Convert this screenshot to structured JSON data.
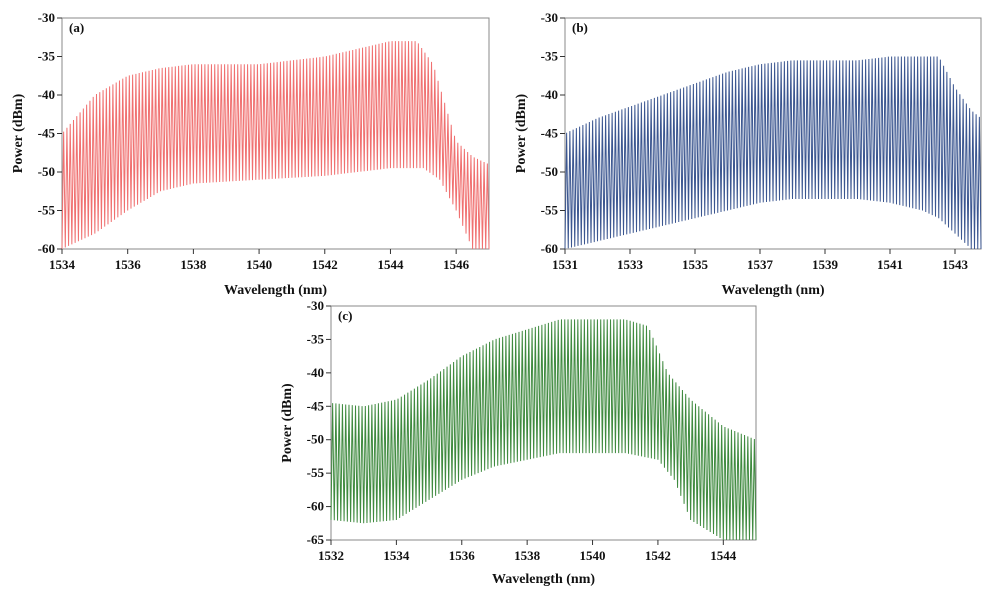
{
  "chart_data": [
    {
      "type": "line",
      "panel_label": "(a)",
      "xlabel": "Wavelength (nm)",
      "ylabel": "Power (dBm)",
      "xlim": [
        1534,
        1547
      ],
      "ylim": [
        -60,
        -30
      ],
      "xticks": [
        "1534",
        "1536",
        "1538",
        "1540",
        "1542",
        "1544",
        "1546"
      ],
      "yticks": [
        "-30",
        "-35",
        "-40",
        "-45",
        "-50",
        "-55",
        "-60"
      ],
      "color": "#f07070",
      "comb_spacing_nm": 0.1,
      "peak_envelope": {
        "x": [
          1534,
          1535,
          1536,
          1537,
          1538,
          1540,
          1542,
          1543,
          1544,
          1544.8,
          1545.3,
          1546,
          1546.5,
          1547
        ],
        "y": [
          -45,
          -40,
          -37.5,
          -36.5,
          -36,
          -36,
          -35,
          -34,
          -33,
          -33,
          -36,
          -46,
          -48,
          -49
        ]
      },
      "valley_envelope": {
        "x": [
          1534,
          1535,
          1536,
          1537,
          1538,
          1540,
          1542,
          1543,
          1544,
          1545,
          1545.5,
          1546,
          1546.5,
          1547
        ],
        "y": [
          -60,
          -58,
          -55,
          -52.5,
          -51.5,
          -51,
          -50.5,
          -50,
          -49.5,
          -49.5,
          -51,
          -55,
          -60,
          -60
        ]
      }
    },
    {
      "type": "line",
      "panel_label": "(b)",
      "xlabel": "Wavelength (nm)",
      "ylabel": "Power (dBm)",
      "xlim": [
        1531,
        1543.8
      ],
      "ylim": [
        -60,
        -30
      ],
      "xticks": [
        "1531",
        "1533",
        "1535",
        "1537",
        "1539",
        "1541",
        "1543"
      ],
      "yticks": [
        "-30",
        "-35",
        "-40",
        "-45",
        "-50",
        "-55",
        "-60"
      ],
      "color": "#3b5690",
      "comb_spacing_nm": 0.1,
      "peak_envelope": {
        "x": [
          1531,
          1532,
          1533,
          1534,
          1535,
          1536,
          1537,
          1538,
          1539,
          1540,
          1541,
          1542,
          1542.5,
          1543,
          1543.5,
          1543.8
        ],
        "y": [
          -45,
          -43,
          -41.5,
          -40,
          -38.5,
          -37,
          -36,
          -35.5,
          -35.5,
          -35.5,
          -35,
          -35,
          -35,
          -39,
          -42,
          -43
        ]
      },
      "valley_envelope": {
        "x": [
          1531,
          1532,
          1533,
          1534,
          1535,
          1536,
          1537,
          1538,
          1539,
          1540,
          1541,
          1542,
          1542.5,
          1543,
          1543.5,
          1543.8
        ],
        "y": [
          -60,
          -59,
          -58,
          -57,
          -56,
          -55,
          -54,
          -53.5,
          -53.5,
          -53.5,
          -54,
          -55,
          -56,
          -58,
          -60,
          -60
        ]
      }
    },
    {
      "type": "line",
      "panel_label": "(c)",
      "xlabel": "Wavelength (nm)",
      "ylabel": "Power (dBm)",
      "xlim": [
        1532,
        1545
      ],
      "ylim": [
        -65,
        -30
      ],
      "xticks": [
        "1532",
        "1534",
        "1536",
        "1538",
        "1540",
        "1542",
        "1544"
      ],
      "yticks": [
        "-30",
        "-35",
        "-40",
        "-45",
        "-50",
        "-55",
        "-60",
        "-65"
      ],
      "color": "#3f8a3f",
      "comb_spacing_nm": 0.1,
      "peak_envelope": {
        "x": [
          1532,
          1533,
          1534,
          1535,
          1536,
          1537,
          1538,
          1539,
          1540,
          1541,
          1541.7,
          1542.3,
          1543,
          1544,
          1545
        ],
        "y": [
          -44.5,
          -45,
          -44,
          -41,
          -37.5,
          -35,
          -33.5,
          -32,
          -32,
          -32,
          -33,
          -40,
          -44,
          -48,
          -50
        ]
      },
      "valley_envelope": {
        "x": [
          1532,
          1533,
          1534,
          1535,
          1536,
          1537,
          1538,
          1539,
          1540,
          1541,
          1542,
          1542.5,
          1543,
          1544,
          1545
        ],
        "y": [
          -62,
          -62.5,
          -62,
          -59,
          -56,
          -54,
          -53,
          -52,
          -52,
          -52,
          -53,
          -56,
          -62,
          -65,
          -65
        ]
      }
    }
  ]
}
